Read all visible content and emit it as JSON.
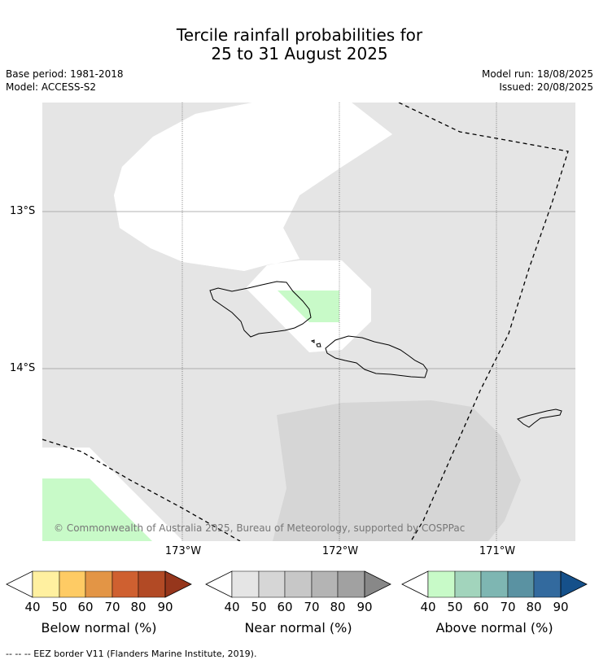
{
  "title": {
    "line1": "Tercile rainfall probabilities for",
    "line2": "25 to 31 August 2025"
  },
  "meta": {
    "base_period": "Base period: 1981-2018",
    "model": "Model: ACCESS-S2",
    "model_run": "Model run: 18/08/2025",
    "issued": "Issued: 20/08/2025"
  },
  "map": {
    "lat_labels": [
      "13°S",
      "14°S"
    ],
    "lon_labels": [
      "173°W",
      "172°W",
      "171°W"
    ],
    "copyright": "© Commonwealth of Australia 2025, Bureau of Meteorology, supported by COSPPac",
    "colors": {
      "background": "#e5e5e5",
      "no_dominant": "#ffffff",
      "near_normal_50": "#d6d6d6",
      "above_normal_40": "#c8fac8"
    }
  },
  "colorbars": [
    {
      "label": "Below normal (%)",
      "ticks": [
        "40",
        "50",
        "60",
        "70",
        "80",
        "90"
      ],
      "colors": [
        "#fff0a0",
        "#fecb64",
        "#e39545",
        "#cf6030",
        "#b24a25",
        "#96361c"
      ]
    },
    {
      "label": "Near normal (%)",
      "ticks": [
        "40",
        "50",
        "60",
        "70",
        "80",
        "90"
      ],
      "colors": [
        "#e5e5e5",
        "#d6d6d6",
        "#c7c7c7",
        "#b4b4b4",
        "#a1a1a1",
        "#888888"
      ]
    },
    {
      "label": "Above normal (%)",
      "ticks": [
        "40",
        "50",
        "60",
        "70",
        "80",
        "90"
      ],
      "colors": [
        "#c8fac8",
        "#a2d4bc",
        "#7eb6b2",
        "#5a92a2",
        "#336a9e",
        "#15508a"
      ]
    }
  ],
  "footnote": "--  --  -- EEZ border V11 (Flanders Marine Institute, 2019)."
}
